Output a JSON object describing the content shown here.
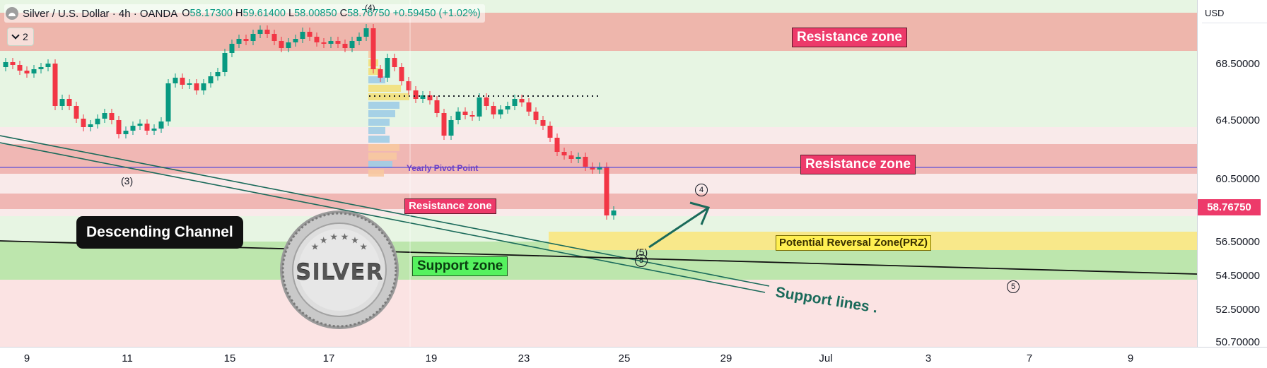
{
  "header": {
    "symbol": "Silver / U.S. Dollar · 4h · OANDA",
    "open_label": "O",
    "open": "58.17300",
    "high_label": "H",
    "high": "59.61400",
    "low_label": "L",
    "low": "58.00850",
    "close_label": "C",
    "close": "58.76750",
    "change": "+0.59450 (+1.02%)",
    "indicator_count": "2"
  },
  "price_axis": {
    "currency": "USD",
    "ticks": [
      "68.50000",
      "64.50000",
      "60.50000",
      "56.50000",
      "54.50000",
      "52.50000",
      "50.70000"
    ],
    "current_price": "58.76750"
  },
  "time_axis": {
    "ticks": [
      "9",
      "11",
      "15",
      "17",
      "19",
      "23",
      "25",
      "29",
      "Jul",
      "3",
      "7",
      "9"
    ]
  },
  "annotations": {
    "resistance_top": "Resistance zone",
    "resistance_mid": "Resistance zone",
    "resistance_low": "Resistance zone",
    "support_zone": "Support zone",
    "prz": "Potential Reversal Zone(PRZ)",
    "descending_channel": "Descending Channel",
    "yearly_pivot": "Yearly Pivot Point",
    "support_lines": "Support lines",
    "support_lines_dot": ".",
    "wave_3_paren": "(3)",
    "wave_5_paren": "(5)",
    "wave_4_circle": "4",
    "wave_5_circle": "5",
    "wave_5_circle_b": "5",
    "wave_4_top": "(4)",
    "logo_text": "SILVER"
  },
  "colors": {
    "resistance_zone": "#ed3a6a",
    "support_zone": "#55f25e",
    "prz": "#ffef52",
    "up_candle": "#089981",
    "down_candle": "#f23645",
    "current_price_label": "#ed3a6a",
    "pivot_line": "#5b4fd6",
    "support_lines": "#1a6a5a"
  },
  "icons": {
    "symbol_logo": "silver-logo-icon",
    "indicators_toggle": "chevron-down-icon",
    "projection_arrow": "arrow-up-right-icon"
  }
}
